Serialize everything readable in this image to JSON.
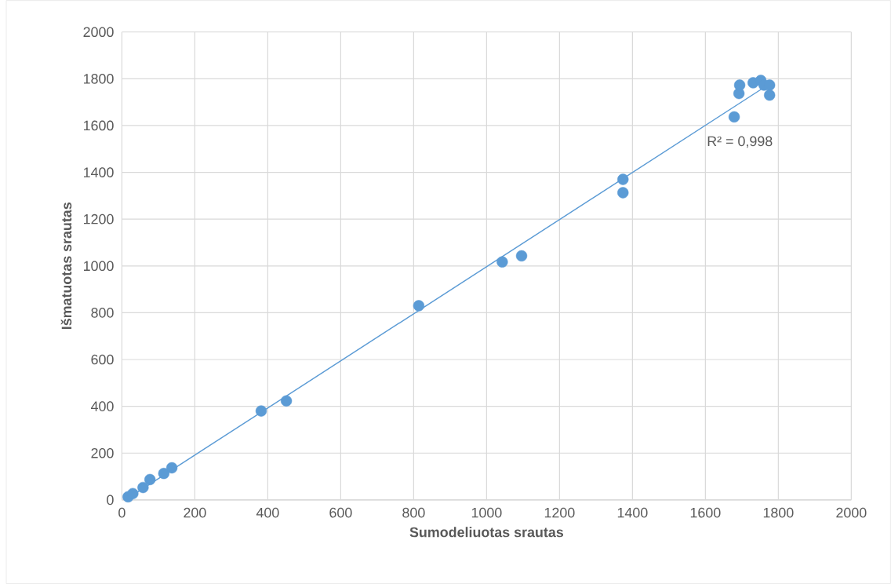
{
  "chart_data": {
    "type": "scatter",
    "xlabel": "**Sumodeliuotas srautas**",
    "ylabel": "**Išmatuotas srautas**",
    "annotations": [
      "R² = 0,998"
    ],
    "series": [
      {
        "marker": "circle",
        "color": "#5b9bd5",
        "x": [
          17,
          30,
          58,
          77,
          115,
          137,
          382,
          451,
          814,
          1043,
          1096,
          1374,
          1374,
          1679,
          1692,
          1694,
          1731,
          1752,
          1761,
          1776,
          1776
        ],
        "values": [
          13,
          27,
          53,
          87,
          113,
          137,
          380,
          423,
          830,
          1017,
          1043,
          1313,
          1370,
          1637,
          1737,
          1773,
          1783,
          1793,
          1773,
          1773,
          1730
        ]
      },
      {
        "type": "line",
        "color": "#5b9bd5",
        "x": [
          13,
          1758
        ],
        "values": [
          3,
          1760
        ]
      }
    ],
    "xlim": [
      0,
      2000
    ],
    "ylim": [
      0,
      2000
    ],
    "xticks": [
      0,
      200,
      400,
      600,
      800,
      1000,
      1200,
      1400,
      1600,
      1800,
      2000
    ],
    "yticks": [
      0,
      200,
      400,
      600,
      800,
      1000,
      1200,
      1400,
      1600,
      1800,
      2000
    ],
    "grid": true,
    "line_style": "solid"
  }
}
